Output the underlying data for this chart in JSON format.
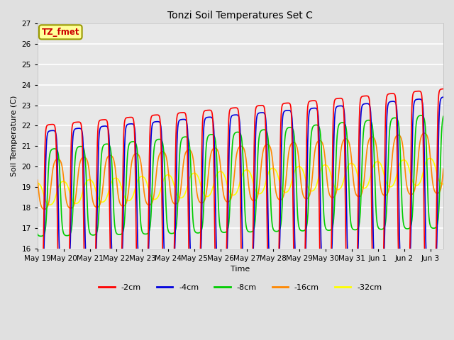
{
  "title": "Tonzi Soil Temperatures Set C",
  "xlabel": "Time",
  "ylabel": "Soil Temperature (C)",
  "ylim": [
    16.0,
    27.0
  ],
  "yticks": [
    16.0,
    17.0,
    18.0,
    19.0,
    20.0,
    21.0,
    22.0,
    23.0,
    24.0,
    25.0,
    26.0,
    27.0
  ],
  "bg_color": "#e0e0e0",
  "plot_bg": "#e8e8e8",
  "grid_color": "#ffffff",
  "legend_labels": [
    "-2cm",
    "-4cm",
    "-8cm",
    "-16cm",
    "-32cm"
  ],
  "legend_colors": [
    "#ff0000",
    "#0000dd",
    "#00cc00",
    "#ff8800",
    "#ffff00"
  ],
  "line_widths": [
    1.2,
    1.2,
    1.2,
    1.2,
    1.2
  ],
  "annotation_text": "TZ_fmet",
  "annotation_color": "#cc0000",
  "annotation_bg": "#ffff99",
  "annotation_border": "#999900",
  "x_tick_labels": [
    "May 19",
    "May 20",
    "May 21",
    "May 22",
    "May 23",
    "May 24",
    "May 25",
    "May 26",
    "May 27",
    "May 28",
    "May 29",
    "May 30",
    "May 31",
    "Jun 1",
    "Jun 2",
    "Jun 3"
  ],
  "n_days": 15.5
}
